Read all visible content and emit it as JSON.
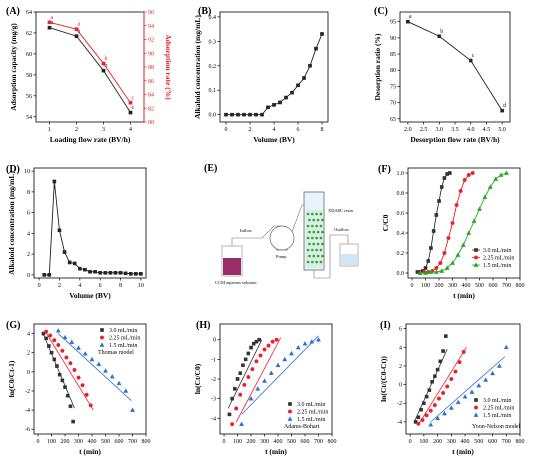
{
  "colors": {
    "black": "#222222",
    "red": "#e8202a",
    "s30": "#333333",
    "s225": "#e8202a",
    "s15": "#2a6fd6",
    "gridgreen": "#22aa22",
    "thomasRed": "#f2a0a0"
  },
  "chart_data": [
    {
      "panel": "(A)",
      "type": "line",
      "x": [
        1,
        2,
        3,
        4
      ],
      "xlabel": "Loading flow rate (BV/h)",
      "ylabel": "Adsorption capacity (mg/g)",
      "ylabel_right": "Adsorption rate (%)",
      "xlim": [
        0.5,
        4.5
      ],
      "ylim": [
        53.5,
        64
      ],
      "ylim_right": [
        80,
        96
      ],
      "xticks": [
        "1",
        "2",
        "3",
        "4"
      ],
      "yticks": [
        "54",
        "56",
        "58",
        "60",
        "62",
        "64"
      ],
      "yticks_right": [
        "80",
        "82",
        "84",
        "86",
        "88",
        "90",
        "92",
        "94",
        "96"
      ],
      "series": [
        {
          "axis": "left",
          "color": "black",
          "values": [
            62.5,
            61.7,
            58.4,
            54.4
          ],
          "labels": [
            "a",
            "a",
            "b",
            "c"
          ]
        },
        {
          "axis": "right",
          "color": "red",
          "values": [
            94.5,
            93.5,
            88.5,
            82.8
          ],
          "labels": [
            "a",
            "a",
            "b",
            "c"
          ]
        }
      ]
    },
    {
      "panel": "(B)",
      "type": "line",
      "xlabel": "Volume (BV)",
      "ylabel": "Alkaloid concentration (mg/mL)",
      "xlim": [
        -0.5,
        8.5
      ],
      "ylim": [
        -0.03,
        0.42
      ],
      "xticks": [
        "0",
        "2",
        "4",
        "6",
        "8"
      ],
      "yticks": [
        "0.0",
        "0.1",
        "0.2",
        "0.3",
        "0.4"
      ],
      "series": [
        {
          "x": [
            0,
            0.5,
            1,
            1.5,
            2,
            2.5,
            3,
            3.5,
            4,
            4.5,
            5,
            5.5,
            6,
            6.5,
            7,
            7.5,
            8
          ],
          "values": [
            0,
            0,
            0,
            0,
            0,
            0,
            0,
            0.03,
            0.04,
            0.05,
            0.07,
            0.09,
            0.12,
            0.15,
            0.2,
            0.27,
            0.33
          ]
        }
      ]
    },
    {
      "panel": "(C)",
      "type": "line",
      "x": [
        2,
        3,
        4,
        5
      ],
      "xlabel": "Desorption flow rate (BV/h)",
      "ylabel": "Desorption ratio (%)",
      "xlim": [
        1.75,
        5.25
      ],
      "ylim": [
        64,
        98
      ],
      "xticks": [
        "2.0",
        "2.5",
        "3.0",
        "3.5",
        "4.0",
        "4.5",
        "5.0"
      ],
      "yticks": [
        "65",
        "70",
        "75",
        "80",
        "85",
        "90",
        "95"
      ],
      "series": [
        {
          "values": [
            95,
            90.5,
            83,
            67.5
          ],
          "labels": [
            "a",
            "b",
            "c",
            "d"
          ]
        }
      ]
    },
    {
      "panel": "(D)",
      "type": "line",
      "xlabel": "Volume (BV)",
      "ylabel": "Alkaloid concentration (mg/mL)",
      "xlim": [
        -0.5,
        10.5
      ],
      "ylim": [
        -0.3,
        10.3
      ],
      "xticks": [
        "0",
        "2",
        "4",
        "6",
        "8",
        "10"
      ],
      "yticks": [
        "0",
        "2",
        "4",
        "6",
        "8",
        "10"
      ],
      "series": [
        {
          "x": [
            0.5,
            1,
            1.5,
            2,
            2.5,
            3,
            3.5,
            4,
            4.5,
            5,
            5.5,
            6,
            6.5,
            7,
            7.5,
            8,
            8.5,
            9,
            9.5,
            10
          ],
          "values": [
            0,
            0,
            9.0,
            4.3,
            2.2,
            1.2,
            1.1,
            0.6,
            0.5,
            0.3,
            0.3,
            0.2,
            0.2,
            0.2,
            0.2,
            0.2,
            0.15,
            0.1,
            0.1,
            0.1
          ]
        }
      ]
    },
    {
      "panel": "(F)",
      "type": "line",
      "xlabel": "t (min)",
      "ylabel": "C/C0",
      "xlim": [
        -30,
        800
      ],
      "ylim": [
        -0.05,
        1.05
      ],
      "xticks": [
        "0",
        "100",
        "200",
        "300",
        "400",
        "500",
        "600",
        "700",
        "800"
      ],
      "yticks": [
        "0.0",
        "0.2",
        "0.4",
        "0.6",
        "0.8",
        "1.0"
      ],
      "series": [
        {
          "name": "3.0   mL/min",
          "color": "s30",
          "marker": "square",
          "x": [
            40,
            60,
            80,
            100,
            120,
            140,
            160,
            180,
            200,
            220,
            240,
            260,
            280
          ],
          "values": [
            0.01,
            0.01,
            0.02,
            0.05,
            0.12,
            0.25,
            0.42,
            0.58,
            0.72,
            0.86,
            0.95,
            0.99,
            1.0
          ]
        },
        {
          "name": "2.25 mL/min",
          "color": "s225",
          "marker": "circle",
          "x": [
            60,
            90,
            120,
            150,
            180,
            210,
            240,
            270,
            300,
            330,
            360,
            390,
            420,
            450
          ],
          "values": [
            0.0,
            0.01,
            0.01,
            0.02,
            0.05,
            0.1,
            0.2,
            0.35,
            0.5,
            0.68,
            0.82,
            0.93,
            0.98,
            1.0
          ]
        },
        {
          "name": "1.5   mL/min",
          "color": "gridgreen",
          "marker": "triangle",
          "x": [
            60,
            100,
            140,
            180,
            220,
            260,
            300,
            340,
            380,
            420,
            460,
            500,
            540,
            580,
            620,
            660,
            700
          ],
          "values": [
            0.0,
            0.0,
            0.01,
            0.01,
            0.02,
            0.05,
            0.1,
            0.18,
            0.28,
            0.4,
            0.52,
            0.64,
            0.76,
            0.86,
            0.94,
            0.98,
            1.0
          ]
        }
      ]
    },
    {
      "panel": "(G)",
      "type": "scatter",
      "annotation": "Thomas model",
      "xlabel": "t (min)",
      "ylabel": "ln(C0/Ct-1)",
      "xlim": [
        -30,
        800
      ],
      "ylim": [
        -6.5,
        5
      ],
      "xticks": [
        "0",
        "100",
        "200",
        "300",
        "400",
        "500",
        "600",
        "700",
        "800"
      ],
      "yticks": [
        "-6",
        "-4",
        "-2",
        "0",
        "2",
        "4"
      ],
      "series": [
        {
          "name": "3.0  mL/min",
          "color": "s30",
          "marker": "square",
          "x": [
            40,
            60,
            80,
            100,
            120,
            140,
            160,
            180,
            200,
            220,
            240,
            260
          ],
          "values": [
            4.0,
            3.5,
            2.7,
            2.0,
            1.3,
            0.6,
            -0.3,
            -0.9,
            -1.6,
            -2.5,
            -3.6,
            -5.2
          ],
          "fit": [
            [
              40,
              3.9
            ],
            [
              270,
              -3.8
            ]
          ]
        },
        {
          "name": "2.25 mL/min",
          "color": "s225",
          "marker": "circle",
          "x": [
            60,
            90,
            120,
            150,
            180,
            210,
            240,
            270,
            300,
            330,
            360,
            390
          ],
          "values": [
            4.2,
            3.8,
            3.3,
            2.8,
            2.2,
            1.5,
            0.9,
            0.2,
            -0.6,
            -1.4,
            -2.4,
            -3.5
          ],
          "fit": [
            [
              50,
              4.3
            ],
            [
              410,
              -4.0
            ]
          ]
        },
        {
          "name": "1.5   mL/min",
          "color": "s15",
          "marker": "triangle",
          "x": [
            150,
            200,
            250,
            300,
            350,
            400,
            450,
            500,
            550,
            600,
            650,
            700
          ],
          "values": [
            4.3,
            3.6,
            3.1,
            2.5,
            1.9,
            1.3,
            0.8,
            0.1,
            -0.5,
            -1.2,
            -2.0,
            -4.0
          ],
          "fit": [
            [
              150,
              4.0
            ],
            [
              690,
              -3.0
            ]
          ]
        }
      ]
    },
    {
      "panel": "(H)",
      "type": "scatter",
      "annotation": "Adams-Bohart",
      "xlabel": "t (min)",
      "ylabel": "ln(Ct/C0)",
      "xlim": [
        -30,
        800
      ],
      "ylim": [
        -4.8,
        0.8
      ],
      "xticks": [
        "0",
        "100",
        "200",
        "300",
        "400",
        "500",
        "600",
        "700",
        "800"
      ],
      "yticks": [
        "-4",
        "-3",
        "-2",
        "-1",
        "0"
      ],
      "series": [
        {
          "name": "3.0   mL/min",
          "color": "s30",
          "marker": "square",
          "x": [
            40,
            60,
            80,
            100,
            120,
            140,
            160,
            180,
            200,
            220,
            240,
            260
          ],
          "values": [
            -3.8,
            -3.0,
            -2.5,
            -2.0,
            -1.7,
            -1.3,
            -1.0,
            -0.7,
            -0.4,
            -0.2,
            -0.1,
            0.0
          ],
          "fit": [
            [
              30,
              -3.5
            ],
            [
              280,
              0.0
            ]
          ]
        },
        {
          "name": "2.25  mL/min",
          "color": "s225",
          "marker": "circle",
          "x": [
            60,
            90,
            120,
            150,
            180,
            210,
            240,
            270,
            300,
            330,
            360,
            390
          ],
          "values": [
            -4.3,
            -3.5,
            -2.8,
            -2.3,
            -1.9,
            -1.5,
            -1.1,
            -0.8,
            -0.5,
            -0.3,
            -0.1,
            0.0
          ],
          "fit": [
            [
              90,
              -4.2
            ],
            [
              420,
              0.1
            ]
          ]
        },
        {
          "name": "1.5   mL/min",
          "color": "s15",
          "marker": "triangle",
          "x": [
            130,
            200,
            250,
            300,
            350,
            400,
            450,
            500,
            550,
            600,
            650,
            700
          ],
          "values": [
            -4.3,
            -3.0,
            -2.5,
            -2.1,
            -1.7,
            -1.3,
            -1.0,
            -0.7,
            -0.4,
            -0.2,
            -0.1,
            0.0
          ],
          "fit": [
            [
              130,
              -3.8
            ],
            [
              700,
              0.2
            ]
          ]
        }
      ]
    },
    {
      "panel": "(I)",
      "type": "scatter",
      "annotation": "Yoon-Nelson model",
      "xlabel": "t (min)",
      "ylabel": "ln(Ct/(C0-Ct))",
      "xlim": [
        -30,
        800
      ],
      "ylim": [
        -5.3,
        6.5
      ],
      "xticks": [
        "0",
        "100",
        "200",
        "300",
        "400",
        "500",
        "600",
        "700",
        "800"
      ],
      "yticks": [
        "-4",
        "-2",
        "0",
        "2",
        "4",
        "6"
      ],
      "series": [
        {
          "name": "3.0   mL/min",
          "color": "s30",
          "marker": "square",
          "x": [
            40,
            60,
            80,
            100,
            120,
            140,
            160,
            180,
            200,
            220,
            240,
            260
          ],
          "values": [
            -4.0,
            -3.5,
            -2.7,
            -2.0,
            -1.3,
            -0.6,
            0.3,
            0.9,
            1.6,
            2.5,
            3.6,
            5.2
          ],
          "fit": [
            [
              30,
              -4.0
            ],
            [
              270,
              3.8
            ]
          ]
        },
        {
          "name": "2.25 mL/min",
          "color": "s225",
          "marker": "circle",
          "x": [
            60,
            90,
            120,
            150,
            180,
            210,
            240,
            270,
            300,
            330,
            360,
            390
          ],
          "values": [
            -4.2,
            -3.8,
            -3.3,
            -2.8,
            -2.2,
            -1.5,
            -0.9,
            -0.2,
            0.6,
            1.4,
            2.4,
            3.5
          ],
          "fit": [
            [
              60,
              -4.3
            ],
            [
              410,
              4.0
            ]
          ]
        },
        {
          "name": "1.5   mL/min",
          "color": "s15",
          "marker": "triangle",
          "x": [
            150,
            200,
            250,
            300,
            350,
            400,
            450,
            500,
            550,
            600,
            650,
            700
          ],
          "values": [
            -4.3,
            -3.6,
            -3.1,
            -2.5,
            -1.9,
            -1.3,
            -0.8,
            -0.1,
            0.5,
            1.2,
            2.0,
            4.0
          ],
          "fit": [
            [
              150,
              -4.0
            ],
            [
              690,
              3.0
            ]
          ]
        }
      ]
    }
  ],
  "diagram": {
    "panel": "(E)",
    "inflow": "Inflow",
    "outflow": "Outflow",
    "pump": "Pump",
    "resin": "XDA8C resin",
    "solution": "CCM aqueous solution"
  }
}
